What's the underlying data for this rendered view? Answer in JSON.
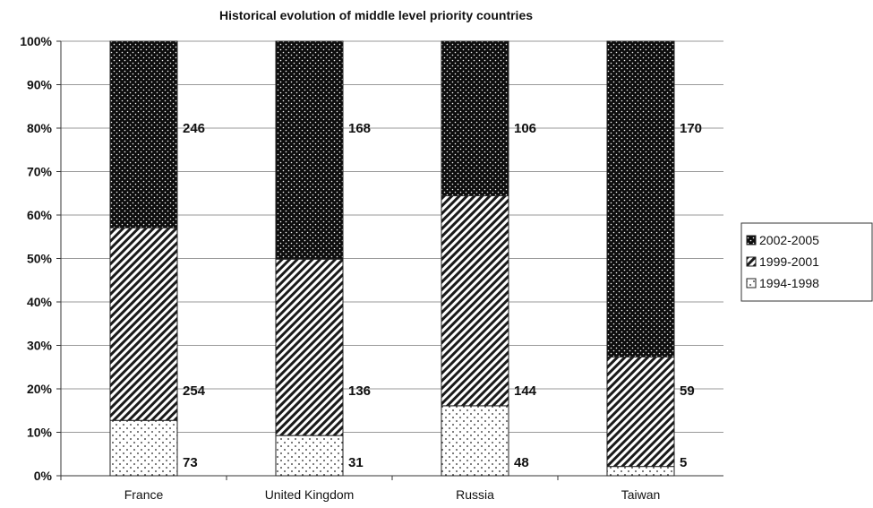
{
  "chart_data": {
    "type": "bar",
    "stacked": "percent",
    "title": "Historical evolution of middle level priority countries",
    "categories": [
      "France",
      "United Kingdom",
      "Russia",
      "Taiwan"
    ],
    "series": [
      {
        "name": "1994-1998",
        "values": [
          73,
          31,
          48,
          5
        ],
        "pattern": "sparse-dots",
        "color": "#ffffff"
      },
      {
        "name": "1999-2001",
        "values": [
          254,
          136,
          144,
          59
        ],
        "pattern": "diagonal-stripes",
        "color": "#ffffff"
      },
      {
        "name": "2002-2005",
        "values": [
          246,
          168,
          106,
          170
        ],
        "pattern": "dense-dots",
        "color": "#111111"
      }
    ],
    "ylim": [
      0,
      100
    ],
    "yticks": [
      "0%",
      "10%",
      "20%",
      "30%",
      "40%",
      "50%",
      "60%",
      "70%",
      "80%",
      "90%",
      "100%"
    ],
    "grid": true,
    "legend": {
      "placement": "right",
      "entries": [
        "2002-2005",
        "1999-2001",
        "1994-1998"
      ]
    }
  }
}
